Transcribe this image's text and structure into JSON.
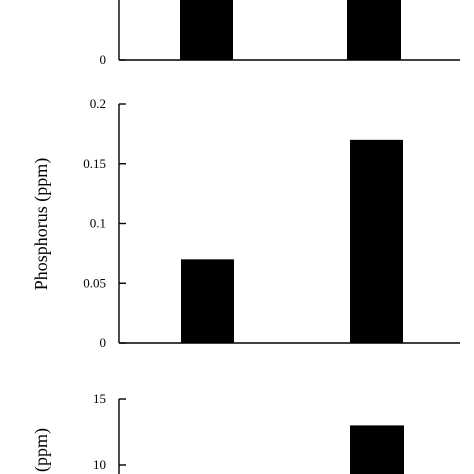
{
  "chart_data": [
    {
      "type": "bar",
      "title": "",
      "xlabel": "",
      "ylabel": "",
      "categories": [
        "",
        ""
      ],
      "values": [
        null,
        null
      ],
      "yticks": [
        "0"
      ],
      "ylim": [
        0,
        1
      ],
      "grid": false,
      "note": "top panel cropped at image edge; only the baseline tick label is visible",
      "colors": {
        "bar": "#000000",
        "axis": "#000000"
      }
    },
    {
      "type": "bar",
      "title": "",
      "xlabel": "",
      "ylabel": "Phosphorus (ppm)",
      "categories": [
        "",
        ""
      ],
      "values": [
        0.07,
        0.17
      ],
      "yticks": [
        "0",
        "0.05",
        "0.1",
        "0.15",
        "0.2"
      ],
      "ylim": [
        0,
        0.2
      ],
      "grid": false,
      "colors": {
        "bar": "#000000",
        "axis": "#000000"
      }
    },
    {
      "type": "bar",
      "title": "",
      "xlabel": "",
      "ylabel": "(ppm)",
      "categories": [
        "",
        ""
      ],
      "values": [
        null,
        13
      ],
      "yticks": [
        "10",
        "15"
      ],
      "ylim": [
        0,
        15
      ],
      "grid": false,
      "note": "bottom panel cropped at image edge; first bar and lower ticks not visible",
      "colors": {
        "bar": "#000000",
        "axis": "#000000"
      }
    }
  ]
}
